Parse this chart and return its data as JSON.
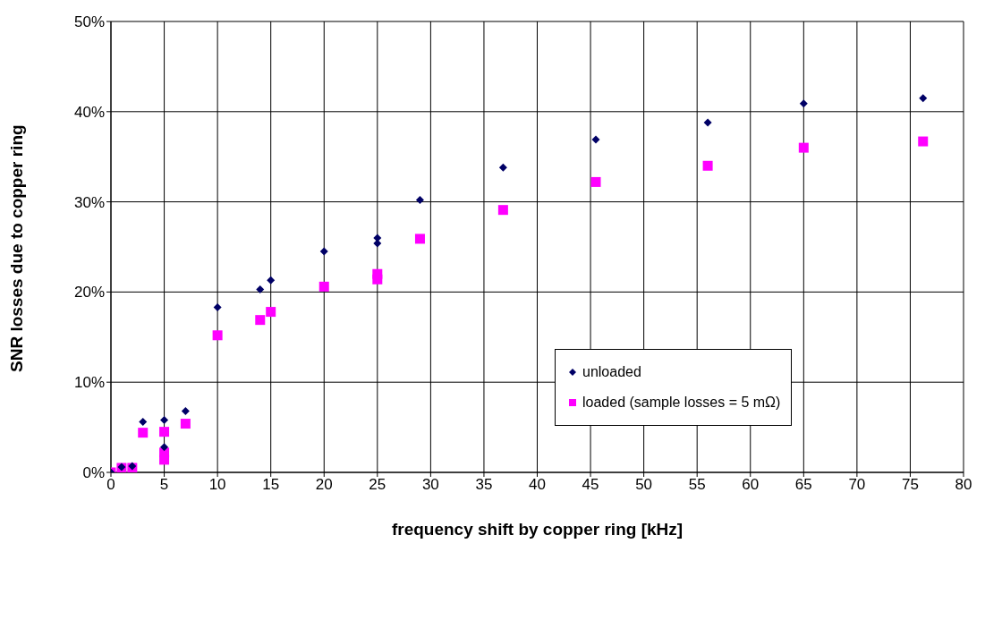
{
  "chart_data": {
    "type": "scatter",
    "xlabel": "frequency shift by copper ring [kHz]",
    "ylabel": "SNR losses due to copper ring",
    "xlim": [
      0,
      80
    ],
    "xticks": [
      0,
      5,
      10,
      15,
      20,
      25,
      30,
      35,
      40,
      45,
      50,
      55,
      60,
      65,
      70,
      75,
      80
    ],
    "ylim": [
      0,
      50
    ],
    "yticks": [
      {
        "value": 0,
        "label": "0%"
      },
      {
        "value": 10,
        "label": "10%"
      },
      {
        "value": 20,
        "label": "20%"
      },
      {
        "value": 30,
        "label": "30%"
      },
      {
        "value": 40,
        "label": "40%"
      },
      {
        "value": 50,
        "label": "50%"
      }
    ],
    "grid": true,
    "legend": "right",
    "series": [
      {
        "name": "unloaded",
        "color": "#000066",
        "marker": "diamond",
        "x": [
          0,
          1,
          2,
          3,
          5,
          5,
          7,
          10,
          14,
          15,
          20,
          25,
          25,
          29,
          36.8,
          45.5,
          56,
          65,
          76.2
        ],
        "values": [
          0,
          0.6,
          0.7,
          5.6,
          5.8,
          2.8,
          6.8,
          18.3,
          20.3,
          21.3,
          24.5,
          26.0,
          25.4,
          30.2,
          33.8,
          36.9,
          38.8,
          40.9,
          41.5
        ]
      },
      {
        "name": "loaded (sample losses = 5 mΩ)",
        "color": "#ff00ff",
        "marker": "square",
        "x": [
          0,
          1,
          2,
          3,
          5,
          5,
          5,
          7,
          10,
          14,
          15,
          20,
          25,
          25,
          29,
          36.8,
          45.5,
          56,
          65,
          76.2
        ],
        "values": [
          0,
          0.5,
          0.5,
          4.4,
          4.5,
          2.2,
          1.4,
          5.4,
          15.2,
          16.9,
          17.8,
          20.6,
          22.0,
          21.4,
          25.9,
          29.1,
          32.2,
          34.0,
          36.0,
          36.7
        ]
      }
    ]
  }
}
